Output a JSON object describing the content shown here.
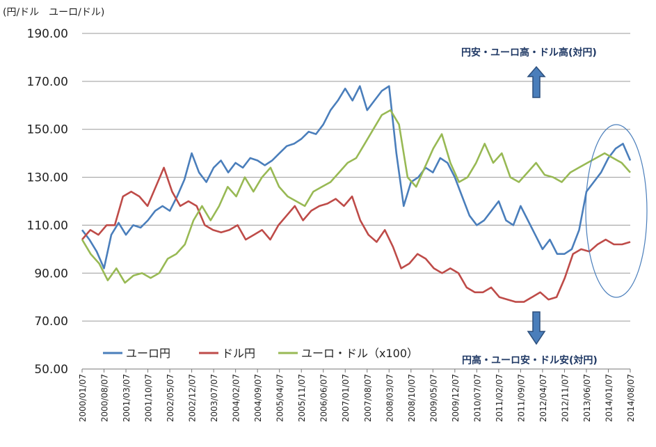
{
  "chart_data": {
    "type": "line",
    "unit_label": "(円/ドル　ユーロ/ドル)",
    "ylim": [
      50,
      190
    ],
    "yticks": [
      "190.00",
      "170.00",
      "150.00",
      "130.00",
      "110.00",
      "90.00",
      "70.00",
      "50.00"
    ],
    "ytick_values": [
      190,
      170,
      150,
      130,
      110,
      90,
      70,
      50
    ],
    "x_range": [
      "2000/01/07",
      "2014/08/07"
    ],
    "xticks": [
      "2000/01/07",
      "2000/08/07",
      "2001/03/07",
      "2001/10/07",
      "2002/05/07",
      "2002/12/07",
      "2003/07/07",
      "2004/02/07",
      "2004/09/07",
      "2005/04/07",
      "2005/11/07",
      "2006/06/07",
      "2007/01/07",
      "2007/08/07",
      "2008/03/07",
      "2008/10/07",
      "2009/05/07",
      "2009/12/07",
      "2010/07/07",
      "2011/02/07",
      "2011/09/07",
      "2012/04/07",
      "2012/11/07",
      "2013/06/07",
      "2014/01/07",
      "2014/08/07"
    ],
    "grid": "horizontal",
    "legend_position": "bottom-left",
    "series_colors": [
      "#4a7ebb",
      "#be4b48",
      "#98b954"
    ],
    "series": [
      {
        "name": "ユーロ円",
        "values": [
          108,
          104,
          99,
          92,
          106,
          111,
          106,
          110,
          109,
          112,
          116,
          118,
          116,
          122,
          129,
          140,
          132,
          128,
          134,
          137,
          132,
          136,
          134,
          138,
          137,
          135,
          137,
          140,
          143,
          144,
          146,
          149,
          148,
          152,
          158,
          162,
          167,
          162,
          168,
          158,
          162,
          166,
          168,
          140,
          118,
          128,
          130,
          134,
          132,
          138,
          136,
          130,
          122,
          114,
          110,
          112,
          116,
          120,
          112,
          110,
          118,
          112,
          106,
          100,
          104,
          98,
          98,
          100,
          108,
          124,
          128,
          132,
          138,
          142,
          144,
          137
        ]
      },
      {
        "name": "ドル円",
        "values": [
          104,
          108,
          106,
          110,
          110,
          122,
          124,
          122,
          118,
          126,
          134,
          124,
          118,
          120,
          118,
          110,
          108,
          107,
          108,
          110,
          104,
          106,
          108,
          104,
          110,
          114,
          118,
          112,
          116,
          118,
          119,
          121,
          118,
          122,
          112,
          106,
          103,
          108,
          101,
          92,
          94,
          98,
          96,
          92,
          90,
          92,
          90,
          84,
          82,
          82,
          84,
          80,
          79,
          78,
          78,
          80,
          82,
          79,
          80,
          88,
          98,
          100,
          99,
          102,
          104,
          102,
          102,
          103
        ]
      },
      {
        "name": "ユーロ・ドル（x100）",
        "values": [
          104,
          98,
          94,
          87,
          92,
          86,
          89,
          90,
          88,
          90,
          96,
          98,
          102,
          112,
          118,
          112,
          118,
          126,
          122,
          130,
          124,
          130,
          134,
          126,
          122,
          120,
          118,
          124,
          126,
          128,
          132,
          136,
          138,
          144,
          150,
          156,
          158,
          152,
          130,
          126,
          134,
          142,
          148,
          136,
          128,
          130,
          136,
          144,
          136,
          140,
          130,
          128,
          132,
          136,
          131,
          130,
          128,
          132,
          134,
          136,
          138,
          140,
          138,
          136,
          132
        ]
      }
    ],
    "annotations": {
      "top_text": "円安・ユーロ高・ドル高(対円)",
      "bottom_text": "円高・ユーロ安・ドル安(対円)"
    }
  }
}
